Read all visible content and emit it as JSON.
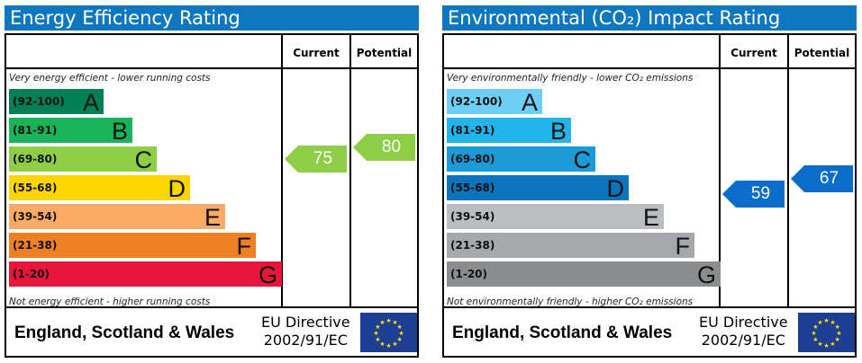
{
  "charts": [
    {
      "title": "Energy Efficiency Rating",
      "top_note": "Very energy efficient - lower running costs",
      "bottom_note": "Not energy efficient - higher running costs",
      "col_current": "Current",
      "col_potential": "Potential",
      "bands": [
        {
          "range": "(92-100)",
          "letter": "A",
          "color": "#008054"
        },
        {
          "range": "(81-91)",
          "letter": "B",
          "color": "#19b459"
        },
        {
          "range": "(69-80)",
          "letter": "C",
          "color": "#8dce46"
        },
        {
          "range": "(55-68)",
          "letter": "D",
          "color": "#ffd500"
        },
        {
          "range": "(39-54)",
          "letter": "E",
          "color": "#fcaa65"
        },
        {
          "range": "(21-38)",
          "letter": "F",
          "color": "#ef8023"
        },
        {
          "range": "(1-20)",
          "letter": "G",
          "color": "#e9153b"
        }
      ],
      "current": "75",
      "potential": "80",
      "current_color": "#8dce46",
      "potential_color": "#8dce46",
      "country": "England, Scotland & Wales",
      "directive_line1": "EU Directive",
      "directive_line2": "2002/91/EC"
    },
    {
      "title": "Environmental (CO₂) Impact Rating",
      "top_note": "Very environmentally friendly - lower CO₂ emissions",
      "bottom_note": "Not environmentally friendly - higher CO₂ emissions",
      "col_current": "Current",
      "col_potential": "Potential",
      "bands": [
        {
          "range": "(92-100)",
          "letter": "A",
          "color": "#6ecff6"
        },
        {
          "range": "(81-91)",
          "letter": "B",
          "color": "#22b5eb"
        },
        {
          "range": "(69-80)",
          "letter": "C",
          "color": "#1a9ad6"
        },
        {
          "range": "(55-68)",
          "letter": "D",
          "color": "#0c74bc"
        },
        {
          "range": "(39-54)",
          "letter": "E",
          "color": "#bbbdbf"
        },
        {
          "range": "(21-38)",
          "letter": "F",
          "color": "#a6a8ab"
        },
        {
          "range": "(1-20)",
          "letter": "G",
          "color": "#8b8c8e"
        }
      ],
      "current": "59",
      "potential": "67",
      "current_color": "#0a6ccb",
      "potential_color": "#0a6ccb",
      "country": "England, Scotland & Wales",
      "directive_line1": "EU Directive",
      "directive_line2": "2002/91/EC"
    }
  ]
}
